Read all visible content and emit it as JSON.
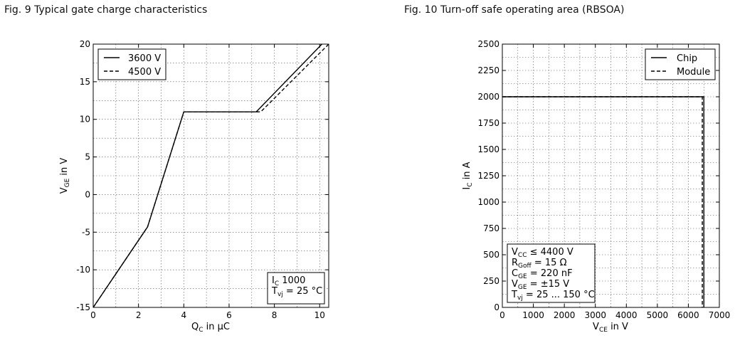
{
  "captions": {
    "fig9": "Fig. 9  Typical gate charge characteristics",
    "fig10": "Fig. 10  Turn-off safe operating area (RBSOA)"
  },
  "chart_data": [
    {
      "type": "line",
      "title": "Fig. 9  Typical gate charge characteristics",
      "xlabel": "Q_G in µC",
      "ylabel": "V_GE in V",
      "xlim": [
        0,
        10.4
      ],
      "ylim": [
        -15,
        20
      ],
      "xticks": [
        0,
        2,
        4,
        6,
        8,
        10
      ],
      "yticks": [
        -15,
        -10,
        -5,
        0,
        5,
        10,
        15,
        20
      ],
      "grid": true,
      "legend_position": "top-left",
      "series": [
        {
          "name": "3600 V",
          "style": "solid",
          "x": [
            0,
            2.4,
            4.0,
            7.2,
            10.1
          ],
          "y": [
            -15,
            -4.3,
            11,
            11,
            20
          ]
        },
        {
          "name": "4500 V",
          "style": "dashed",
          "x": [
            0,
            2.4,
            4.0,
            7.4,
            10.4
          ],
          "y": [
            -15,
            -4.3,
            11,
            11,
            20
          ]
        }
      ],
      "annotation": [
        "I_C 1000",
        "T_vj = 25 °C"
      ]
    },
    {
      "type": "line",
      "title": "Fig. 10  Turn-off safe operating area (RBSOA)",
      "xlabel": "V_CE in V",
      "ylabel": "I_C in A",
      "xlim": [
        0,
        7000
      ],
      "ylim": [
        0,
        2500
      ],
      "xticks": [
        0,
        1000,
        2000,
        3000,
        4000,
        5000,
        6000,
        7000
      ],
      "yticks": [
        0,
        250,
        500,
        750,
        1000,
        1250,
        1500,
        1750,
        2000,
        2250,
        2500
      ],
      "grid": true,
      "legend_position": "top-right",
      "series": [
        {
          "name": "Chip",
          "style": "solid",
          "x": [
            0,
            6500,
            6500
          ],
          "y": [
            2000,
            2000,
            0
          ]
        },
        {
          "name": "Module",
          "style": "dashed",
          "x": [
            0,
            6450,
            6450
          ],
          "y": [
            2000,
            2000,
            0
          ]
        }
      ],
      "annotation": [
        "V_CC ≤ 4400 V",
        "R_Goff = 15 Ω",
        "C_GE = 220 nF",
        "V_GE = ±15 V",
        "T_vj = 25 ... 150 °C"
      ]
    }
  ]
}
